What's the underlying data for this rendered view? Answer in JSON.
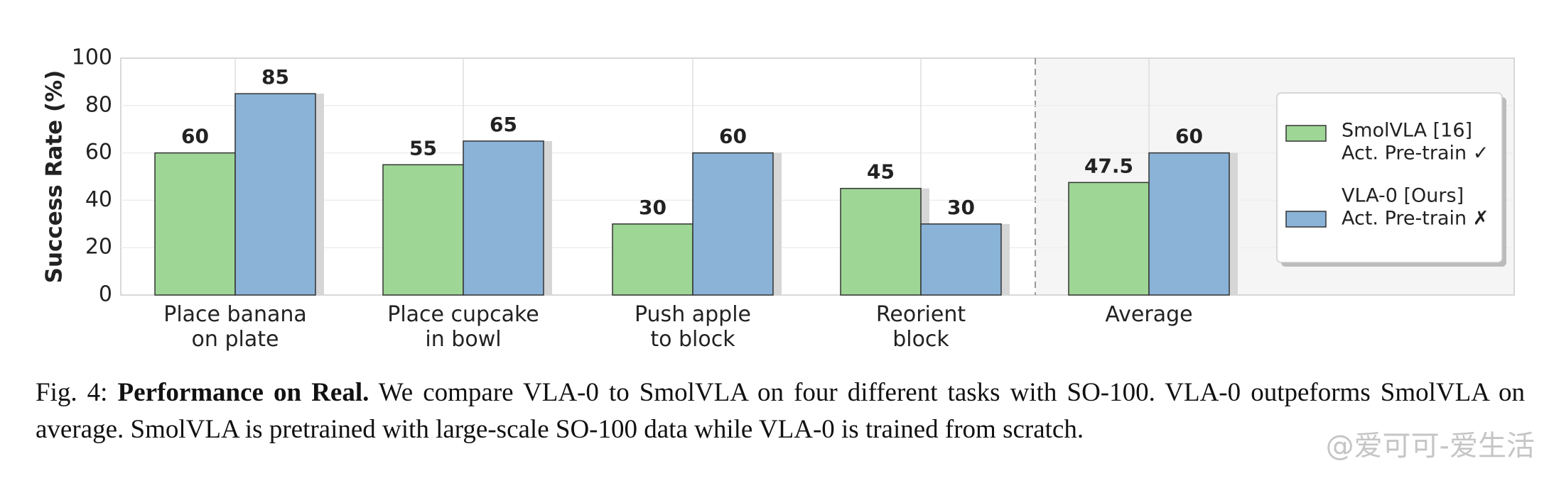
{
  "chart_data": {
    "type": "bar",
    "y_label": "Success Rate (%)",
    "categories": [
      "Place banana\non plate",
      "Place cupcake\nin bowl",
      "Push apple\nto block",
      "Reorient\nblock",
      "Average"
    ],
    "series": [
      {
        "name": "SmolVLA [16]",
        "subtitle": "Act. Pre-train ✓",
        "color": "#9ed695",
        "values": [
          60,
          55,
          30,
          45,
          47.5
        ]
      },
      {
        "name": "VLA-0 [Ours]",
        "subtitle": "Act. Pre-train ✗",
        "color": "#8ab3d7",
        "values": [
          85,
          65,
          60,
          30,
          60
        ]
      }
    ],
    "ylim": [
      0,
      100
    ],
    "yticks": [
      0,
      20,
      40,
      60,
      80,
      100
    ],
    "grid": true,
    "legend": "right"
  },
  "caption": {
    "label": "Fig. 4: ",
    "bold": "Performance on Real.",
    "text": " We compare VLA-0 to SmolVLA on four different tasks with SO-100. VLA-0 outpeforms SmolVLA on average. SmolVLA is pretrained with large-scale SO-100 data while VLA-0 is trained from scratch."
  },
  "watermark": "@爱可可-爱生活"
}
